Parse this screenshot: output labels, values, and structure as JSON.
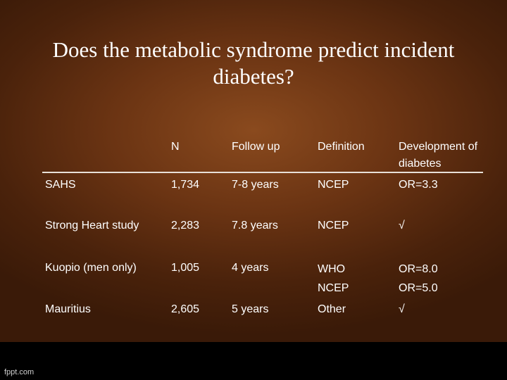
{
  "slide": {
    "title": "Does the metabolic syndrome predict incident diabetes?"
  },
  "table": {
    "headers": [
      "",
      "N",
      "Follow up",
      "Definition",
      "Development of diabetes"
    ],
    "rows": [
      [
        "SAHS",
        "1,734",
        "7-8 years",
        "NCEP",
        "OR=3.3"
      ],
      [
        "Strong Heart study",
        "2,283",
        "7.8 years",
        "NCEP",
        "√"
      ],
      [
        "Kuopio (men only)",
        "1,005",
        "4 years",
        "WHO\nNCEP",
        "OR=8.0\nOR=5.0"
      ],
      [
        "Mauritius",
        "2,605",
        "5 years",
        "Other",
        "√"
      ]
    ]
  },
  "footer": {
    "watermark": "fppt.com"
  }
}
